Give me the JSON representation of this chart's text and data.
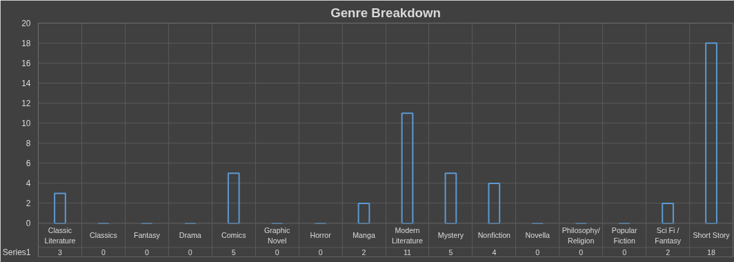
{
  "chart_data": {
    "type": "bar",
    "title": "Genre Breakdown",
    "categories": [
      "Classic Literature",
      "Classics",
      "Fantasy",
      "Drama",
      "Comics",
      "Graphic Novel",
      "Horror",
      "Manga",
      "Modern Literature",
      "Mystery",
      "Nonfiction",
      "Novella",
      "Philosophy/ Religion",
      "Popular Fiction",
      "Sci Fi / Fantasy",
      "Short Story"
    ],
    "series": [
      {
        "name": "Series1",
        "color": "#5b9bd5",
        "values": [
          3,
          0,
          0,
          0,
          5,
          0,
          0,
          2,
          11,
          5,
          4,
          0,
          0,
          0,
          2,
          18
        ]
      }
    ],
    "ylim": [
      0,
      20
    ],
    "yticks": [
      0,
      2,
      4,
      6,
      8,
      10,
      12,
      14,
      16,
      18,
      20
    ],
    "grid": true,
    "data_labels": true
  }
}
